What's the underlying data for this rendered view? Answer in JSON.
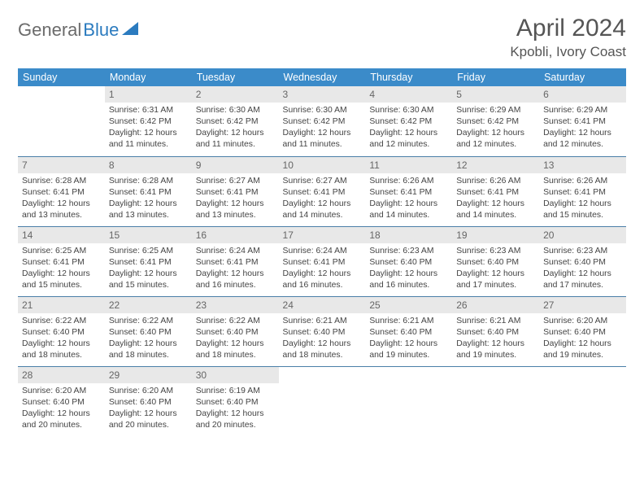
{
  "logo": {
    "general": "General",
    "blue": "Blue"
  },
  "title": "April 2024",
  "location": "Kpobli, Ivory Coast",
  "colors": {
    "header_bg": "#3b8bc9",
    "header_text": "#ffffff",
    "daynum_bg": "#e8e8e8",
    "daynum_text": "#666666",
    "body_text": "#444444",
    "row_divider": "#4a7fa8",
    "logo_gray": "#6b6b6b",
    "logo_blue": "#2b7bbf"
  },
  "typography": {
    "title_fontsize": 30,
    "location_fontsize": 17,
    "header_fontsize": 12.5,
    "daynum_fontsize": 12,
    "cell_fontsize": 10.4
  },
  "headers": [
    "Sunday",
    "Monday",
    "Tuesday",
    "Wednesday",
    "Thursday",
    "Friday",
    "Saturday"
  ],
  "weeks": [
    [
      null,
      {
        "n": "1",
        "sr": "Sunrise: 6:31 AM",
        "ss": "Sunset: 6:42 PM",
        "d1": "Daylight: 12 hours",
        "d2": "and 11 minutes."
      },
      {
        "n": "2",
        "sr": "Sunrise: 6:30 AM",
        "ss": "Sunset: 6:42 PM",
        "d1": "Daylight: 12 hours",
        "d2": "and 11 minutes."
      },
      {
        "n": "3",
        "sr": "Sunrise: 6:30 AM",
        "ss": "Sunset: 6:42 PM",
        "d1": "Daylight: 12 hours",
        "d2": "and 11 minutes."
      },
      {
        "n": "4",
        "sr": "Sunrise: 6:30 AM",
        "ss": "Sunset: 6:42 PM",
        "d1": "Daylight: 12 hours",
        "d2": "and 12 minutes."
      },
      {
        "n": "5",
        "sr": "Sunrise: 6:29 AM",
        "ss": "Sunset: 6:42 PM",
        "d1": "Daylight: 12 hours",
        "d2": "and 12 minutes."
      },
      {
        "n": "6",
        "sr": "Sunrise: 6:29 AM",
        "ss": "Sunset: 6:41 PM",
        "d1": "Daylight: 12 hours",
        "d2": "and 12 minutes."
      }
    ],
    [
      {
        "n": "7",
        "sr": "Sunrise: 6:28 AM",
        "ss": "Sunset: 6:41 PM",
        "d1": "Daylight: 12 hours",
        "d2": "and 13 minutes."
      },
      {
        "n": "8",
        "sr": "Sunrise: 6:28 AM",
        "ss": "Sunset: 6:41 PM",
        "d1": "Daylight: 12 hours",
        "d2": "and 13 minutes."
      },
      {
        "n": "9",
        "sr": "Sunrise: 6:27 AM",
        "ss": "Sunset: 6:41 PM",
        "d1": "Daylight: 12 hours",
        "d2": "and 13 minutes."
      },
      {
        "n": "10",
        "sr": "Sunrise: 6:27 AM",
        "ss": "Sunset: 6:41 PM",
        "d1": "Daylight: 12 hours",
        "d2": "and 14 minutes."
      },
      {
        "n": "11",
        "sr": "Sunrise: 6:26 AM",
        "ss": "Sunset: 6:41 PM",
        "d1": "Daylight: 12 hours",
        "d2": "and 14 minutes."
      },
      {
        "n": "12",
        "sr": "Sunrise: 6:26 AM",
        "ss": "Sunset: 6:41 PM",
        "d1": "Daylight: 12 hours",
        "d2": "and 14 minutes."
      },
      {
        "n": "13",
        "sr": "Sunrise: 6:26 AM",
        "ss": "Sunset: 6:41 PM",
        "d1": "Daylight: 12 hours",
        "d2": "and 15 minutes."
      }
    ],
    [
      {
        "n": "14",
        "sr": "Sunrise: 6:25 AM",
        "ss": "Sunset: 6:41 PM",
        "d1": "Daylight: 12 hours",
        "d2": "and 15 minutes."
      },
      {
        "n": "15",
        "sr": "Sunrise: 6:25 AM",
        "ss": "Sunset: 6:41 PM",
        "d1": "Daylight: 12 hours",
        "d2": "and 15 minutes."
      },
      {
        "n": "16",
        "sr": "Sunrise: 6:24 AM",
        "ss": "Sunset: 6:41 PM",
        "d1": "Daylight: 12 hours",
        "d2": "and 16 minutes."
      },
      {
        "n": "17",
        "sr": "Sunrise: 6:24 AM",
        "ss": "Sunset: 6:41 PM",
        "d1": "Daylight: 12 hours",
        "d2": "and 16 minutes."
      },
      {
        "n": "18",
        "sr": "Sunrise: 6:23 AM",
        "ss": "Sunset: 6:40 PM",
        "d1": "Daylight: 12 hours",
        "d2": "and 16 minutes."
      },
      {
        "n": "19",
        "sr": "Sunrise: 6:23 AM",
        "ss": "Sunset: 6:40 PM",
        "d1": "Daylight: 12 hours",
        "d2": "and 17 minutes."
      },
      {
        "n": "20",
        "sr": "Sunrise: 6:23 AM",
        "ss": "Sunset: 6:40 PM",
        "d1": "Daylight: 12 hours",
        "d2": "and 17 minutes."
      }
    ],
    [
      {
        "n": "21",
        "sr": "Sunrise: 6:22 AM",
        "ss": "Sunset: 6:40 PM",
        "d1": "Daylight: 12 hours",
        "d2": "and 18 minutes."
      },
      {
        "n": "22",
        "sr": "Sunrise: 6:22 AM",
        "ss": "Sunset: 6:40 PM",
        "d1": "Daylight: 12 hours",
        "d2": "and 18 minutes."
      },
      {
        "n": "23",
        "sr": "Sunrise: 6:22 AM",
        "ss": "Sunset: 6:40 PM",
        "d1": "Daylight: 12 hours",
        "d2": "and 18 minutes."
      },
      {
        "n": "24",
        "sr": "Sunrise: 6:21 AM",
        "ss": "Sunset: 6:40 PM",
        "d1": "Daylight: 12 hours",
        "d2": "and 18 minutes."
      },
      {
        "n": "25",
        "sr": "Sunrise: 6:21 AM",
        "ss": "Sunset: 6:40 PM",
        "d1": "Daylight: 12 hours",
        "d2": "and 19 minutes."
      },
      {
        "n": "26",
        "sr": "Sunrise: 6:21 AM",
        "ss": "Sunset: 6:40 PM",
        "d1": "Daylight: 12 hours",
        "d2": "and 19 minutes."
      },
      {
        "n": "27",
        "sr": "Sunrise: 6:20 AM",
        "ss": "Sunset: 6:40 PM",
        "d1": "Daylight: 12 hours",
        "d2": "and 19 minutes."
      }
    ],
    [
      {
        "n": "28",
        "sr": "Sunrise: 6:20 AM",
        "ss": "Sunset: 6:40 PM",
        "d1": "Daylight: 12 hours",
        "d2": "and 20 minutes."
      },
      {
        "n": "29",
        "sr": "Sunrise: 6:20 AM",
        "ss": "Sunset: 6:40 PM",
        "d1": "Daylight: 12 hours",
        "d2": "and 20 minutes."
      },
      {
        "n": "30",
        "sr": "Sunrise: 6:19 AM",
        "ss": "Sunset: 6:40 PM",
        "d1": "Daylight: 12 hours",
        "d2": "and 20 minutes."
      },
      null,
      null,
      null,
      null
    ]
  ]
}
